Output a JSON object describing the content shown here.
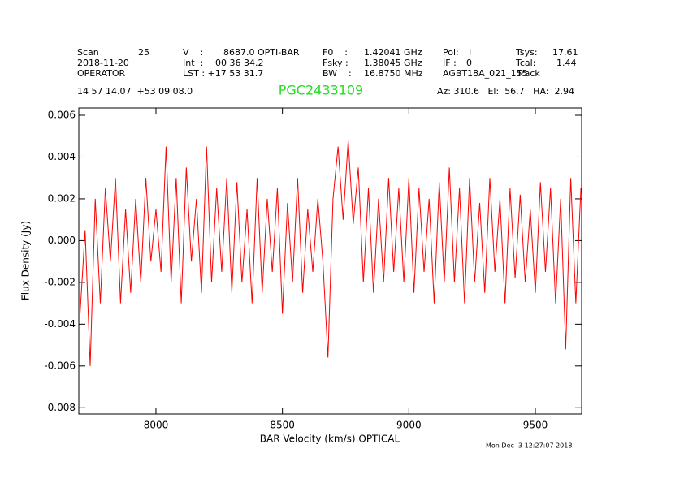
{
  "chart_data": {
    "type": "line",
    "title": "PGC2433109",
    "title_color": "#22dd22",
    "header": [
      [
        "Scan",
        "25",
        "V    :",
        "8687.0 OPTI-BAR",
        "F0    :",
        "1.42041 GHz",
        "Pol:",
        "I",
        "Tsys:",
        "17.61"
      ],
      [
        "2018-11-20",
        "Int  :",
        "00 36 34.2",
        "Fsky :",
        "1.38045 GHz",
        "IF :",
        "0",
        "Tcal:",
        "1.44"
      ],
      [
        "OPERATOR",
        "LST : +17 53 31.7",
        "BW    :",
        "16.8750 MHz",
        "AGBT18A_021_155",
        "Track"
      ],
      [
        "14 57 14.07  +53 09 08.0",
        "Az: 310.6   El:  56.7   HA:  2.94"
      ]
    ],
    "timestamp": "Mon Dec  3 12:27:07 2018",
    "x_label": "BAR Velocity (km/s) OPTICAL",
    "y_label": "Flux Density (Jy)",
    "xlim": [
      7695,
      9683
    ],
    "ylim": [
      -0.0083,
      0.00635
    ],
    "xticks": [
      8000,
      8500,
      9000,
      9500
    ],
    "yticks": [
      0.006,
      0.004,
      0.002,
      {
        "value": 0,
        "label": "0.000"
      },
      -0.002,
      -0.004,
      -0.006,
      -0.008
    ],
    "series": [
      {
        "name": "spectrum",
        "color": "#ff0000",
        "x": [
          7700,
          7720,
          7740,
          7760,
          7780,
          7800,
          7820,
          7840,
          7860,
          7880,
          7900,
          7920,
          7940,
          7960,
          7980,
          8000,
          8020,
          8040,
          8060,
          8080,
          8100,
          8120,
          8140,
          8160,
          8180,
          8200,
          8220,
          8240,
          8260,
          8280,
          8300,
          8320,
          8340,
          8360,
          8380,
          8400,
          8420,
          8440,
          8460,
          8480,
          8500,
          8520,
          8540,
          8560,
          8580,
          8600,
          8620,
          8640,
          8660,
          8680,
          8700,
          8720,
          8740,
          8760,
          8780,
          8800,
          8820,
          8840,
          8860,
          8880,
          8900,
          8920,
          8940,
          8960,
          8980,
          9000,
          9020,
          9040,
          9060,
          9080,
          9100,
          9120,
          9140,
          9160,
          9180,
          9200,
          9220,
          9240,
          9260,
          9280,
          9300,
          9320,
          9340,
          9360,
          9380,
          9400,
          9420,
          9440,
          9460,
          9480,
          9500,
          9520,
          9540,
          9560,
          9580,
          9600,
          9620,
          9640,
          9660,
          9680
        ],
        "values": [
          -0.0035,
          0.0005,
          -0.006,
          0.002,
          -0.003,
          0.0025,
          -0.001,
          0.003,
          -0.003,
          0.0015,
          -0.0025,
          0.002,
          -0.002,
          0.003,
          -0.001,
          0.0015,
          -0.0015,
          0.0045,
          -0.002,
          0.003,
          -0.003,
          0.0035,
          -0.001,
          0.002,
          -0.0025,
          0.0045,
          -0.002,
          0.0025,
          -0.0015,
          0.003,
          -0.0025,
          0.0028,
          -0.002,
          0.0015,
          -0.003,
          0.003,
          -0.0025,
          0.002,
          -0.0015,
          0.0025,
          -0.0035,
          0.0018,
          -0.002,
          0.003,
          -0.0025,
          0.0015,
          -0.0015,
          0.002,
          -0.001,
          -0.0056,
          0.002,
          0.0045,
          0.001,
          0.0048,
          0.0008,
          0.0035,
          -0.002,
          0.0025,
          -0.0025,
          0.002,
          -0.002,
          0.003,
          -0.0015,
          0.0025,
          -0.002,
          0.003,
          -0.0025,
          0.0025,
          -0.0015,
          0.002,
          -0.003,
          0.0028,
          -0.002,
          0.0035,
          -0.002,
          0.0025,
          -0.003,
          0.003,
          -0.002,
          0.0018,
          -0.0025,
          0.003,
          -0.0015,
          0.002,
          -0.003,
          0.0025,
          -0.0018,
          0.0022,
          -0.002,
          0.0015,
          -0.0025,
          0.0028,
          -0.0015,
          0.0025,
          -0.003,
          0.002,
          -0.0052,
          0.003,
          -0.003,
          0.0025
        ]
      }
    ]
  }
}
